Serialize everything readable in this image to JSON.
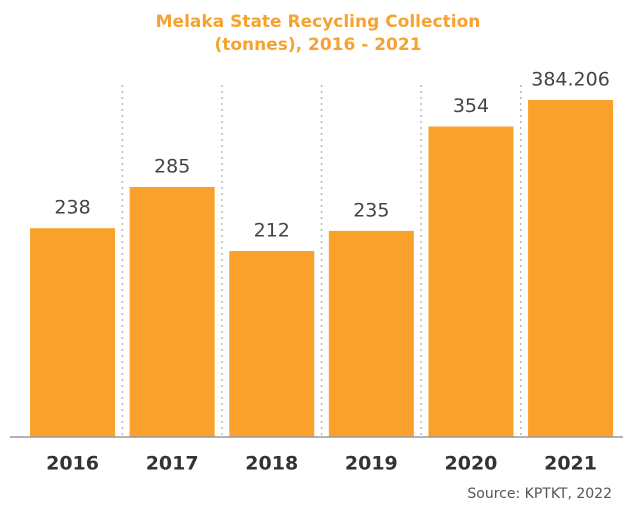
{
  "chart_data": {
    "type": "bar",
    "title": [
      "Melaka State Recycling Collection",
      "(tonnes), 2016 - 2021"
    ],
    "categories": [
      "2016",
      "2017",
      "2018",
      "2019",
      "2020",
      "2021"
    ],
    "values": [
      238,
      285,
      212,
      235,
      354,
      384.206
    ],
    "color": "#f9a12b",
    "source": "Source: KPTKT, 2022"
  }
}
